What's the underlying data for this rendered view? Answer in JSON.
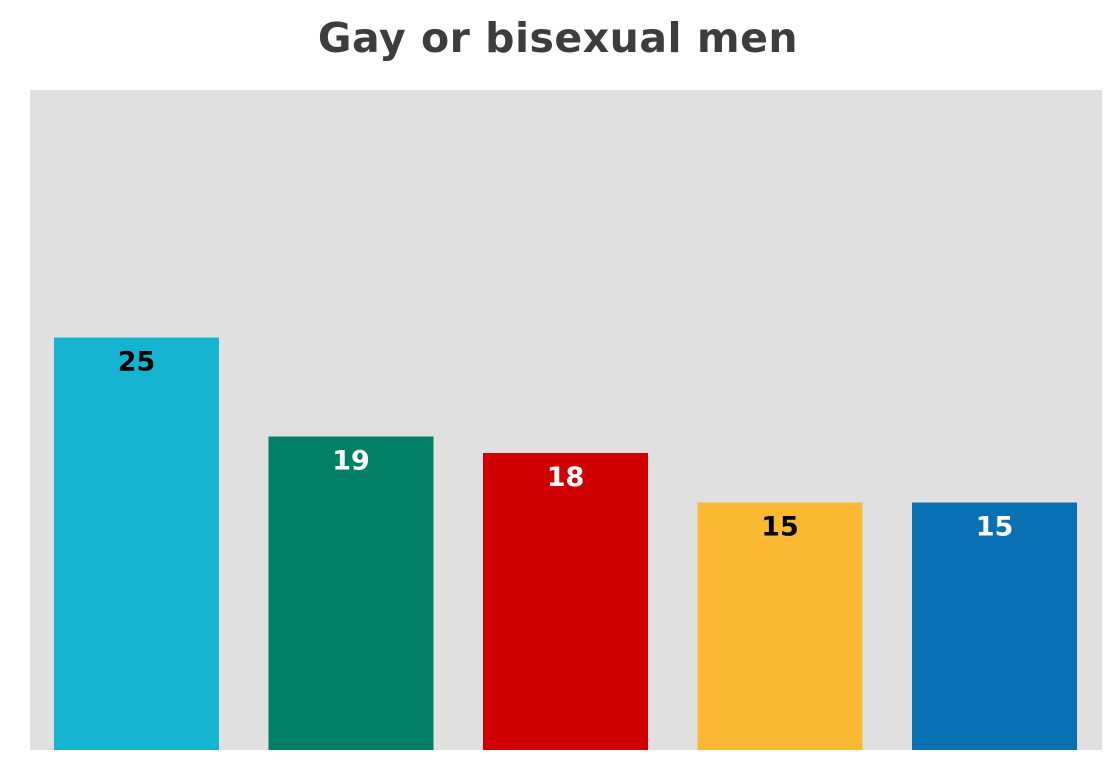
{
  "chart_data": {
    "type": "bar",
    "title": "Gay or bisexual men",
    "categories": [
      "",
      "",
      "",
      "",
      ""
    ],
    "values": [
      25,
      19,
      18,
      15,
      15
    ],
    "bar_colors": [
      "#15b4d1",
      "#007f67",
      "#d10000",
      "#fbb832",
      "#0a70b4"
    ],
    "label_colors": [
      "#000000",
      "#ffffff",
      "#ffffff",
      "#000000",
      "#ffffff"
    ],
    "ylim": [
      0,
      40
    ],
    "grid": false,
    "background_color": "#e0e0e0"
  }
}
